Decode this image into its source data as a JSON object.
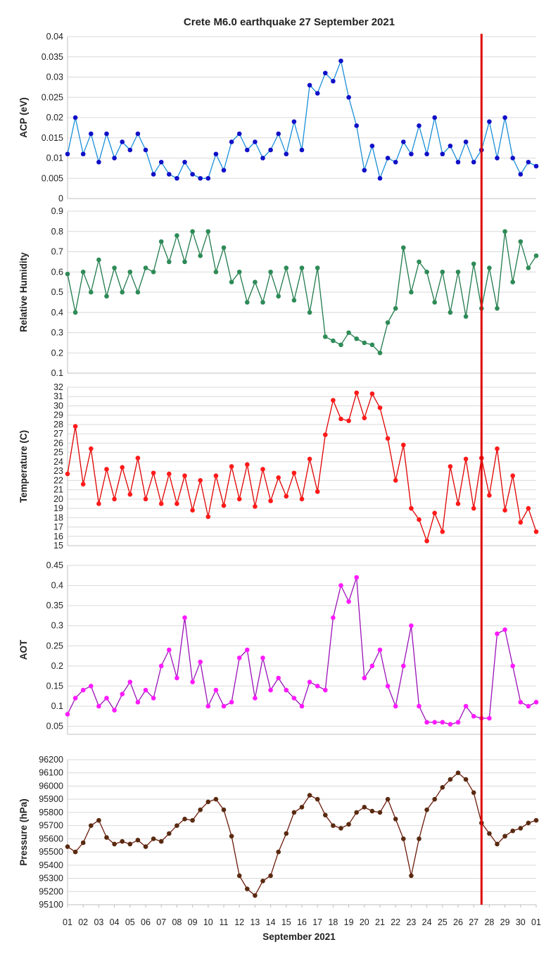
{
  "chart_data": {
    "type": "line",
    "title": "Crete M6.0 earthquake 27 September 2021",
    "xlabel": "September 2021",
    "x_tick_labels": [
      "01",
      "02",
      "03",
      "04",
      "05",
      "06",
      "07",
      "08",
      "09",
      "10",
      "11",
      "12",
      "13",
      "14",
      "15",
      "16",
      "17",
      "18",
      "19",
      "20",
      "21",
      "22",
      "23",
      "24",
      "25",
      "26",
      "27",
      "28",
      "29",
      "30",
      "01"
    ],
    "event_marker": {
      "label": "Earthquake",
      "x_day": 27.5,
      "color": "#e00000"
    },
    "panels": [
      {
        "name": "acp",
        "ylabel": "ACP (eV)",
        "color": "#1a8fd8",
        "marker_color": "#1010c8",
        "ylim": [
          0,
          0.04
        ],
        "yticks": [
          0,
          0.005,
          0.01,
          0.015,
          0.02,
          0.025,
          0.03,
          0.035,
          0.04
        ],
        "ytick_labels": [
          "0",
          "0.005",
          "0.01",
          "0.015",
          "0.02",
          "0.025",
          "0.03",
          "0.035",
          "0.04"
        ],
        "x": [
          1,
          1.5,
          2,
          2.5,
          3,
          3.5,
          4,
          4.5,
          5,
          5.5,
          6,
          6.5,
          7,
          7.5,
          8,
          8.5,
          9,
          9.5,
          10,
          10.5,
          11,
          11.5,
          12,
          12.5,
          13,
          13.5,
          14,
          14.5,
          15,
          15.5,
          16,
          16.5,
          17,
          17.5,
          18,
          18.5,
          19,
          19.5,
          20,
          20.5,
          21,
          21.5,
          22,
          22.5,
          23,
          23.5,
          24,
          24.5,
          25,
          25.5,
          26,
          26.5,
          27,
          27.5,
          28,
          28.5,
          29,
          29.5,
          30,
          30.5,
          31
        ],
        "values": [
          0.011,
          0.02,
          0.011,
          0.016,
          0.009,
          0.016,
          0.01,
          0.014,
          0.012,
          0.016,
          0.012,
          0.006,
          0.009,
          0.006,
          0.005,
          0.009,
          0.006,
          0.005,
          0.005,
          0.011,
          0.007,
          0.014,
          0.016,
          0.012,
          0.014,
          0.01,
          0.012,
          0.016,
          0.011,
          0.019,
          0.012,
          0.028,
          0.026,
          0.031,
          0.029,
          0.034,
          0.025,
          0.018,
          0.007,
          0.013,
          0.005,
          0.01,
          0.009,
          0.014,
          0.011,
          0.018,
          0.011,
          0.02,
          0.011,
          0.013,
          0.009,
          0.014,
          0.009,
          0.012,
          0.019,
          0.01,
          0.02,
          0.01,
          0.006,
          0.009,
          0.008
        ]
      },
      {
        "name": "humidity",
        "ylabel": "Relative Humidity",
        "color": "#1f7a4a",
        "marker_color": "#2e8b57",
        "ylim": [
          0.1,
          0.9
        ],
        "yticks": [
          0.1,
          0.2,
          0.3,
          0.4,
          0.5,
          0.6,
          0.7,
          0.8,
          0.9
        ],
        "ytick_labels": [
          "0.1",
          "0.2",
          "0.3",
          "0.4",
          "0.5",
          "0.6",
          "0.7",
          "0.8",
          "0.9"
        ],
        "x": [
          1,
          1.5,
          2,
          2.5,
          3,
          3.5,
          4,
          4.5,
          5,
          5.5,
          6,
          6.5,
          7,
          7.5,
          8,
          8.5,
          9,
          9.5,
          10,
          10.5,
          11,
          11.5,
          12,
          12.5,
          13,
          13.5,
          14,
          14.5,
          15,
          15.5,
          16,
          16.5,
          17,
          17.5,
          18,
          18.5,
          19,
          19.5,
          20,
          20.5,
          21,
          21.5,
          22,
          22.5,
          23,
          23.5,
          24,
          24.5,
          25,
          25.5,
          26,
          26.5,
          27,
          27.5,
          28,
          28.5,
          29,
          29.5,
          30,
          30.5,
          31
        ],
        "values": [
          0.59,
          0.4,
          0.6,
          0.5,
          0.66,
          0.48,
          0.62,
          0.5,
          0.6,
          0.5,
          0.62,
          0.6,
          0.75,
          0.65,
          0.78,
          0.65,
          0.8,
          0.68,
          0.8,
          0.6,
          0.72,
          0.55,
          0.6,
          0.45,
          0.55,
          0.45,
          0.6,
          0.48,
          0.62,
          0.46,
          0.62,
          0.4,
          0.62,
          0.28,
          0.26,
          0.24,
          0.3,
          0.27,
          0.25,
          0.24,
          0.2,
          0.35,
          0.42,
          0.72,
          0.5,
          0.65,
          0.6,
          0.45,
          0.6,
          0.4,
          0.6,
          0.38,
          0.64,
          0.42,
          0.62,
          0.42,
          0.8,
          0.55,
          0.75,
          0.62,
          0.68
        ]
      },
      {
        "name": "temperature",
        "ylabel": "Temperature (C)",
        "color": "#e00000",
        "marker_color": "#ff1a1a",
        "ylim": [
          15,
          32
        ],
        "yticks": [
          15,
          16,
          17,
          18,
          19,
          20,
          21,
          22,
          23,
          24,
          25,
          26,
          27,
          28,
          29,
          30,
          31,
          32
        ],
        "ytick_labels": [
          "15",
          "16",
          "17",
          "18",
          "19",
          "20",
          "21",
          "22",
          "23",
          "24",
          "25",
          "26",
          "27",
          "28",
          "29",
          "30",
          "31",
          "32"
        ],
        "x": [
          1,
          1.5,
          2,
          2.5,
          3,
          3.5,
          4,
          4.5,
          5,
          5.5,
          6,
          6.5,
          7,
          7.5,
          8,
          8.5,
          9,
          9.5,
          10,
          10.5,
          11,
          11.5,
          12,
          12.5,
          13,
          13.5,
          14,
          14.5,
          15,
          15.5,
          16,
          16.5,
          17,
          17.5,
          18,
          18.5,
          19,
          19.5,
          20,
          20.5,
          21,
          21.5,
          22,
          22.5,
          23,
          23.5,
          24,
          24.5,
          25,
          25.5,
          26,
          26.5,
          27,
          27.5,
          28,
          28.5,
          29,
          29.5,
          30,
          30.5,
          31
        ],
        "values": [
          22.7,
          27.8,
          21.6,
          25.4,
          19.5,
          23.2,
          20,
          23.4,
          20.5,
          24.4,
          20,
          22.8,
          19.5,
          22.7,
          19.5,
          22.5,
          18.8,
          22,
          18.1,
          22.5,
          19.3,
          23.5,
          20,
          23.7,
          19.2,
          23.2,
          19.8,
          22.3,
          20.3,
          22.8,
          20,
          24.3,
          20.8,
          26.9,
          30.6,
          28.6,
          28.4,
          31.4,
          28.7,
          31.3,
          29.8,
          26.5,
          22,
          25.8,
          19,
          17.8,
          15.5,
          18.5,
          16.5,
          23.5,
          19.5,
          24.3,
          19,
          24.4,
          20.4,
          25.4,
          18.8,
          22.5,
          17.5,
          19,
          16.5
        ]
      },
      {
        "name": "aot",
        "ylabel": "AOT",
        "color": "#9b10b8",
        "marker_color": "#ff1aff",
        "ylim": [
          0.03,
          0.45
        ],
        "yticks": [
          0.05,
          0.1,
          0.15,
          0.2,
          0.25,
          0.3,
          0.35,
          0.4,
          0.45
        ],
        "ytick_labels": [
          "0.05",
          "0.1",
          "0.15",
          "0.2",
          "0.25",
          "0.3",
          "0.35",
          "0.4",
          "0.45"
        ],
        "x": [
          1,
          1.5,
          2,
          2.5,
          3,
          3.5,
          4,
          4.5,
          5,
          5.5,
          6,
          6.5,
          7,
          7.5,
          8,
          8.5,
          9,
          9.5,
          10,
          10.5,
          11,
          11.5,
          12,
          12.5,
          13,
          13.5,
          14,
          14.5,
          15,
          15.5,
          16,
          16.5,
          17,
          17.5,
          18,
          18.5,
          19,
          19.5,
          20,
          20.5,
          21,
          21.5,
          22,
          22.5,
          23,
          23.5,
          24,
          24.5,
          25,
          25.5,
          26,
          26.5,
          27,
          27.5,
          28,
          28.5,
          29,
          29.5,
          30,
          30.5,
          31
        ],
        "values": [
          0.08,
          0.12,
          0.14,
          0.15,
          0.1,
          0.12,
          0.09,
          0.13,
          0.16,
          0.11,
          0.14,
          0.12,
          0.2,
          0.24,
          0.17,
          0.32,
          0.16,
          0.21,
          0.1,
          0.14,
          0.1,
          0.11,
          0.22,
          0.24,
          0.12,
          0.22,
          0.14,
          0.17,
          0.14,
          0.12,
          0.1,
          0.16,
          0.15,
          0.14,
          0.32,
          0.4,
          0.36,
          0.42,
          0.17,
          0.2,
          0.24,
          0.15,
          0.1,
          0.2,
          0.3,
          0.1,
          0.06,
          0.06,
          0.06,
          0.055,
          0.06,
          0.1,
          0.075,
          0.07,
          0.07,
          0.28,
          0.29,
          0.2,
          0.11,
          0.1,
          0.11
        ]
      },
      {
        "name": "pressure",
        "ylabel": "Pressure (hPa)",
        "color": "#6b1a0a",
        "marker_color": "#5a2a10",
        "ylim": [
          95100,
          96200
        ],
        "yticks": [
          95100,
          95200,
          95300,
          95400,
          95500,
          95600,
          95700,
          95800,
          95900,
          96000,
          96100,
          96200
        ],
        "ytick_labels": [
          "95100",
          "95200",
          "95300",
          "95400",
          "95500",
          "95600",
          "95700",
          "95800",
          "95900",
          "96000",
          "96100",
          "96200"
        ],
        "x": [
          1,
          1.5,
          2,
          2.5,
          3,
          3.5,
          4,
          4.5,
          5,
          5.5,
          6,
          6.5,
          7,
          7.5,
          8,
          8.5,
          9,
          9.5,
          10,
          10.5,
          11,
          11.5,
          12,
          12.5,
          13,
          13.5,
          14,
          14.5,
          15,
          15.5,
          16,
          16.5,
          17,
          17.5,
          18,
          18.5,
          19,
          19.5,
          20,
          20.5,
          21,
          21.5,
          22,
          22.5,
          23,
          23.5,
          24,
          24.5,
          25,
          25.5,
          26,
          26.5,
          27,
          27.5,
          28,
          28.5,
          29,
          29.5,
          30,
          30.5,
          31
        ],
        "values": [
          95540,
          95500,
          95570,
          95700,
          95740,
          95610,
          95560,
          95580,
          95560,
          95590,
          95540,
          95600,
          95580,
          95640,
          95700,
          95750,
          95740,
          95820,
          95880,
          95900,
          95820,
          95620,
          95320,
          95220,
          95170,
          95280,
          95320,
          95500,
          95640,
          95800,
          95840,
          95930,
          95900,
          95780,
          95700,
          95680,
          95710,
          95800,
          95840,
          95810,
          95800,
          95900,
          95750,
          95600,
          95320,
          95600,
          95820,
          95900,
          95990,
          96050,
          96100,
          96050,
          95950,
          95720,
          95640,
          95560,
          95620,
          95660,
          95680,
          95720,
          95740
        ]
      }
    ]
  }
}
